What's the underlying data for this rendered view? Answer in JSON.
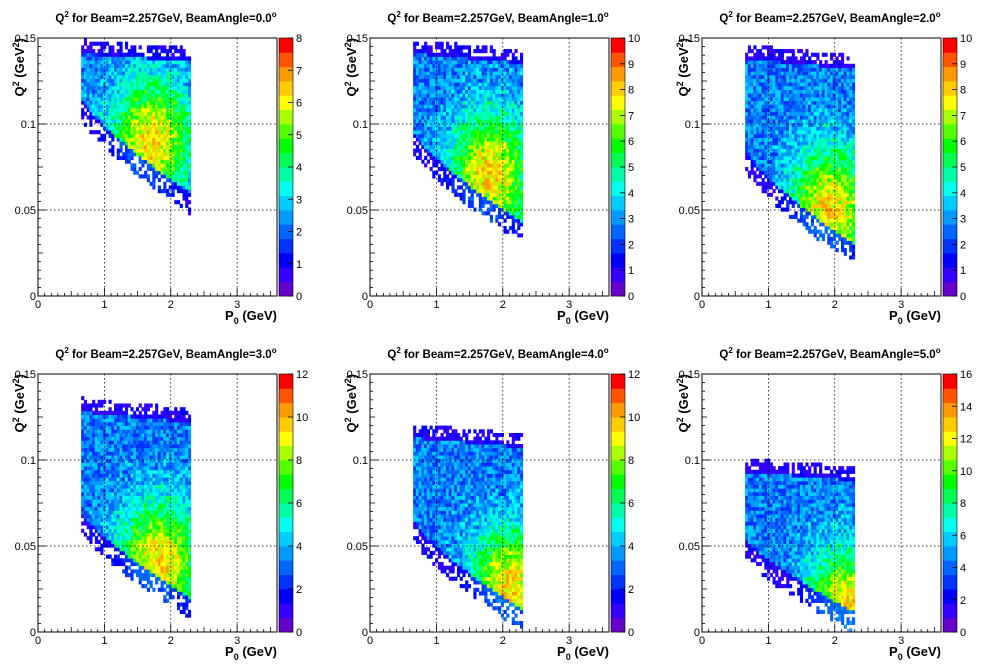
{
  "figure": {
    "x_axis_label": "P",
    "x_axis_label_sub": "0",
    "x_axis_label_unit": " (GeV)",
    "y_axis_label": "Q",
    "y_axis_label_sup": "2",
    "y_axis_label_unit": " (GeV",
    "y_axis_label_unit_sup": "2",
    "y_axis_label_close": ")"
  },
  "colors": {
    "palette": [
      "#6600cc",
      "#3300ff",
      "#0000ff",
      "#0033ff",
      "#0066ff",
      "#0099ff",
      "#00ccff",
      "#00ffee",
      "#00ffaa",
      "#00ff55",
      "#00ff00",
      "#55ff00",
      "#aaff00",
      "#ffff00",
      "#ffcc00",
      "#ff9900",
      "#ff5500",
      "#ff0000"
    ]
  },
  "chart_data": [
    {
      "type": "heatmap",
      "title_prefix": "Q",
      "title_sup": "2",
      "title_main": " for Beam=2.257GeV, BeamAngle=0.0",
      "title_deg": "o",
      "xlim": [
        0,
        3.6
      ],
      "ylim": [
        0,
        0.15
      ],
      "x_ticks": [
        "0",
        "1",
        "2",
        "3"
      ],
      "x_tick_values": [
        0,
        1,
        2,
        3
      ],
      "y_ticks": [
        "0",
        "0.05",
        "0.1",
        "0.15"
      ],
      "y_tick_values": [
        0,
        0.05,
        0.1,
        0.15
      ],
      "z_ticks": [
        "0",
        "1",
        "2",
        "3",
        "4",
        "5",
        "6",
        "7",
        "8"
      ],
      "zmax": 8,
      "grid": true,
      "region": {
        "p_min": 0.65,
        "p_max": 2.3,
        "q_min_at_pmin": 0.105,
        "q_min_at_pmax": 0.05,
        "q_max": 0.148
      },
      "hotspot": {
        "p": 1.7,
        "q": 0.09
      }
    },
    {
      "type": "heatmap",
      "title_prefix": "Q",
      "title_sup": "2",
      "title_main": " for Beam=2.257GeV, BeamAngle=1.0",
      "title_deg": "o",
      "xlim": [
        0,
        3.6
      ],
      "ylim": [
        0,
        0.15
      ],
      "x_ticks": [
        "0",
        "1",
        "2",
        "3"
      ],
      "x_tick_values": [
        0,
        1,
        2,
        3
      ],
      "y_ticks": [
        "0",
        "0.05",
        "0.1",
        "0.15"
      ],
      "y_tick_values": [
        0,
        0.05,
        0.1,
        0.15
      ],
      "z_ticks": [
        "0",
        "1",
        "2",
        "3",
        "4",
        "5",
        "6",
        "7",
        "8",
        "9",
        "10"
      ],
      "zmax": 10,
      "grid": true,
      "region": {
        "p_min": 0.65,
        "p_max": 2.3,
        "q_min_at_pmin": 0.085,
        "q_min_at_pmax": 0.033,
        "q_max": 0.148
      },
      "hotspot": {
        "p": 1.8,
        "q": 0.07
      }
    },
    {
      "type": "heatmap",
      "title_prefix": "Q",
      "title_sup": "2",
      "title_main": " for Beam=2.257GeV, BeamAngle=2.0",
      "title_deg": "o",
      "xlim": [
        0,
        3.6
      ],
      "ylim": [
        0,
        0.15
      ],
      "x_ticks": [
        "0",
        "1",
        "2",
        "3"
      ],
      "x_tick_values": [
        0,
        1,
        2,
        3
      ],
      "y_ticks": [
        "0",
        "0.05",
        "0.1",
        "0.15"
      ],
      "y_tick_values": [
        0,
        0.05,
        0.1,
        0.15
      ],
      "z_ticks": [
        "0",
        "1",
        "2",
        "3",
        "4",
        "5",
        "6",
        "7",
        "8",
        "9",
        "10"
      ],
      "zmax": 10,
      "grid": true,
      "region": {
        "p_min": 0.65,
        "p_max": 2.3,
        "q_min_at_pmin": 0.075,
        "q_min_at_pmax": 0.02,
        "q_max": 0.145
      },
      "hotspot": {
        "p": 1.9,
        "q": 0.05
      }
    },
    {
      "type": "heatmap",
      "title_prefix": "Q",
      "title_sup": "2",
      "title_main": " for Beam=2.257GeV, BeamAngle=3.0",
      "title_deg": "o",
      "xlim": [
        0,
        3.6
      ],
      "ylim": [
        0,
        0.15
      ],
      "x_ticks": [
        "0",
        "1",
        "2",
        "3"
      ],
      "x_tick_values": [
        0,
        1,
        2,
        3
      ],
      "y_ticks": [
        "0",
        "0.05",
        "0.1",
        "0.15"
      ],
      "y_tick_values": [
        0,
        0.05,
        0.1,
        0.15
      ],
      "z_ticks": [
        "0",
        "2",
        "4",
        "6",
        "8",
        "10",
        "12"
      ],
      "zmax": 12,
      "grid": true,
      "region": {
        "p_min": 0.65,
        "p_max": 2.3,
        "q_min_at_pmin": 0.06,
        "q_min_at_pmax": 0.01,
        "q_max": 0.135
      },
      "hotspot": {
        "p": 1.8,
        "q": 0.04
      }
    },
    {
      "type": "heatmap",
      "title_prefix": "Q",
      "title_sup": "2",
      "title_main": " for Beam=2.257GeV, BeamAngle=4.0",
      "title_deg": "o",
      "xlim": [
        0,
        3.6
      ],
      "ylim": [
        0,
        0.15
      ],
      "x_ticks": [
        "0",
        "1",
        "2",
        "3"
      ],
      "x_tick_values": [
        0,
        1,
        2,
        3
      ],
      "y_ticks": [
        "0",
        "0.05",
        "0.1",
        "0.15"
      ],
      "y_tick_values": [
        0,
        0.05,
        0.1,
        0.15
      ],
      "z_ticks": [
        "0",
        "2",
        "4",
        "6",
        "8",
        "10",
        "12"
      ],
      "zmax": 12,
      "grid": true,
      "region": {
        "p_min": 0.65,
        "p_max": 2.3,
        "q_min_at_pmin": 0.055,
        "q_min_at_pmax": 0.003,
        "q_max": 0.12
      },
      "hotspot": {
        "p": 2.1,
        "q": 0.025
      }
    },
    {
      "type": "heatmap",
      "title_prefix": "Q",
      "title_sup": "2",
      "title_main": " for Beam=2.257GeV, BeamAngle=5.0",
      "title_deg": "o",
      "xlim": [
        0,
        3.6
      ],
      "ylim": [
        0,
        0.15
      ],
      "x_ticks": [
        "0",
        "1",
        "2",
        "3"
      ],
      "x_tick_values": [
        0,
        1,
        2,
        3
      ],
      "y_ticks": [
        "0",
        "0.05",
        "0.1",
        "0.15"
      ],
      "y_tick_values": [
        0,
        0.05,
        0.1,
        0.15
      ],
      "z_ticks": [
        "0",
        "2",
        "4",
        "6",
        "8",
        "10",
        "12",
        "14",
        "16"
      ],
      "zmax": 16,
      "grid": true,
      "region": {
        "p_min": 0.65,
        "p_max": 2.3,
        "q_min_at_pmin": 0.045,
        "q_min_at_pmax": 0.002,
        "q_max": 0.1
      },
      "hotspot": {
        "p": 2.15,
        "q": 0.012
      }
    }
  ]
}
